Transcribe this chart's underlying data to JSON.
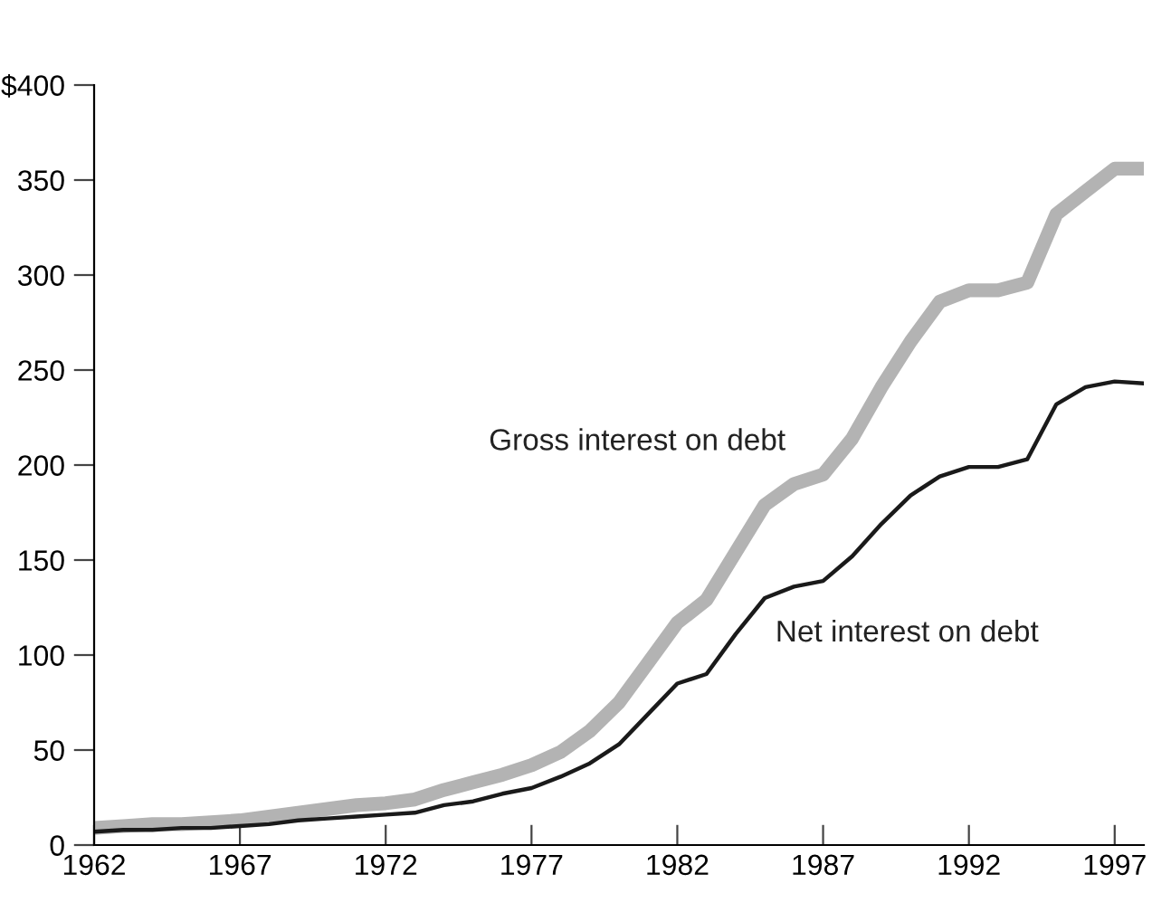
{
  "chart_data": {
    "type": "line",
    "x": [
      1962,
      1963,
      1964,
      1965,
      1966,
      1967,
      1968,
      1969,
      1970,
      1971,
      1972,
      1973,
      1974,
      1975,
      1976,
      1977,
      1978,
      1979,
      1980,
      1981,
      1982,
      1983,
      1984,
      1985,
      1986,
      1987,
      1988,
      1989,
      1990,
      1991,
      1992,
      1993,
      1994,
      1995,
      1996,
      1997,
      1998
    ],
    "series": [
      {
        "name": "Gross interest on debt",
        "color": "#b3b3b3",
        "values": [
          9,
          10,
          11,
          11,
          12,
          13,
          15,
          17,
          19,
          21,
          22,
          24,
          29,
          33,
          37,
          42,
          49,
          60,
          75,
          96,
          117,
          129,
          154,
          179,
          190,
          195,
          214,
          241,
          265,
          286,
          292,
          292,
          296,
          332,
          344,
          356,
          356
        ]
      },
      {
        "name": "Net interest on debt",
        "color": "#1a1a1a",
        "values": [
          7,
          8,
          8,
          9,
          9,
          10,
          11,
          13,
          14,
          15,
          16,
          17,
          21,
          23,
          27,
          30,
          36,
          43,
          53,
          69,
          85,
          90,
          111,
          130,
          136,
          139,
          152,
          169,
          184,
          194,
          199,
          199,
          203,
          232,
          241,
          244,
          243
        ]
      }
    ],
    "xlim": [
      1962,
      1998
    ],
    "xticks": [
      1962,
      1967,
      1972,
      1977,
      1982,
      1987,
      1992,
      1997
    ],
    "ylim": [
      0,
      400
    ],
    "yticks": [
      0,
      50,
      100,
      150,
      200,
      250,
      300,
      350,
      {
        "value": 400,
        "label": "$400"
      }
    ],
    "grid": false,
    "legend": false,
    "marker": "none",
    "line_style": "solid"
  }
}
